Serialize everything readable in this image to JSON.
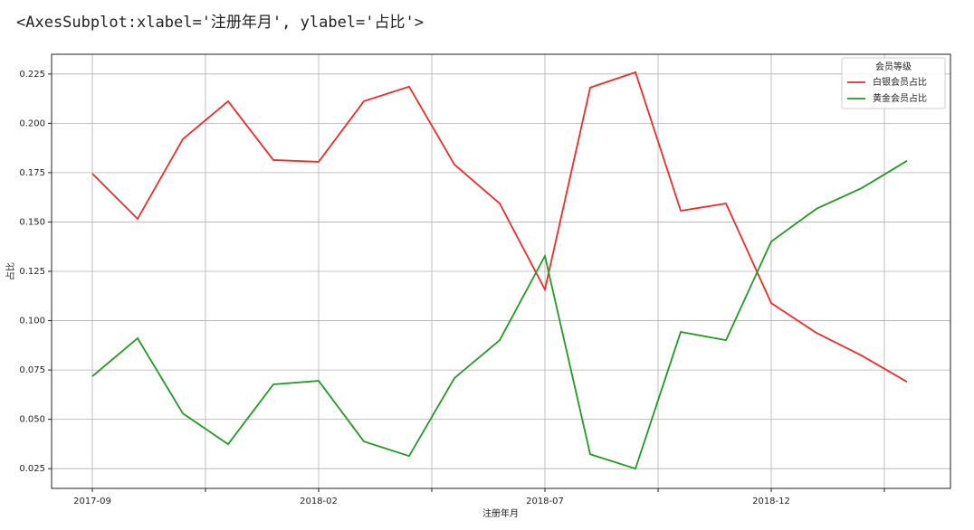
{
  "output_repr": "<AxesSubplot:xlabel='注册年月', ylabel='占比'>",
  "chart_data": {
    "type": "line",
    "xlabel": "注册年月",
    "ylabel": "占比",
    "categories": [
      "2017-09",
      null,
      null,
      null,
      null,
      "2018-02",
      null,
      null,
      null,
      null,
      "2018-07",
      null,
      null,
      null,
      null,
      "2018-12",
      null,
      null,
      null
    ],
    "series": [
      {
        "name": "白银会员占比",
        "color": "#ee2a2a",
        "values": [
          0.1745,
          0.1516,
          0.192,
          0.2112,
          0.1814,
          0.1805,
          0.2112,
          0.2186,
          0.1791,
          0.1594,
          0.1158,
          0.2181,
          0.2259,
          0.1557,
          0.1594,
          0.1089,
          0.0938,
          0.0823,
          0.069
        ]
      },
      {
        "name": "黄金会员占比",
        "color": "#229922",
        "values": [
          0.0718,
          0.0911,
          0.053,
          0.0374,
          0.0677,
          0.0695,
          0.0388,
          0.0314,
          0.0709,
          0.0901,
          0.1328,
          0.0323,
          0.025,
          0.0943,
          0.0901,
          0.1401,
          0.1567,
          0.1672,
          0.181
        ]
      }
    ],
    "legend_title": "会员等级",
    "legend": "upper right",
    "xlim": [
      -0.9,
      18.96
    ],
    "xticks": [
      0,
      2.5,
      5,
      7.5,
      10,
      12.5,
      15,
      17.5
    ],
    "ylim": [
      0.015,
      0.235
    ],
    "yticks": [
      0.025,
      {
        "value": 0.05,
        "label": "0.050"
      },
      0.075,
      {
        "value": 0.1,
        "label": "0.100"
      },
      0.125,
      {
        "value": 0.15,
        "label": "0.150"
      },
      0.175,
      {
        "value": 0.2,
        "label": "0.200"
      },
      0.225
    ],
    "grid": true
  }
}
